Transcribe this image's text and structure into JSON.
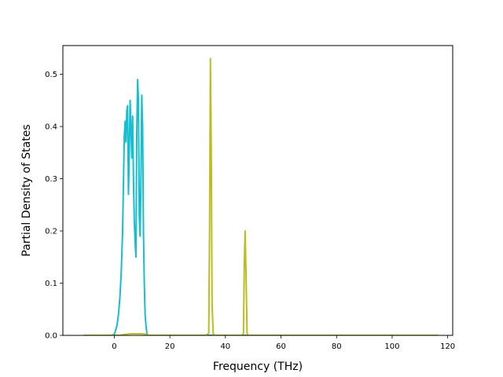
{
  "chart_data": {
    "type": "line",
    "xlabel": "Frequency (THz)",
    "ylabel": "Partial Density of States",
    "xlim": [
      -18.5,
      121.8
    ],
    "ylim": [
      0,
      0.555
    ],
    "xticks": [
      0,
      20,
      40,
      60,
      80,
      100,
      120
    ],
    "yticks": [
      0.0,
      0.1,
      0.2,
      0.3,
      0.4,
      0.5
    ],
    "xtick_labels": [
      "0",
      "20",
      "40",
      "60",
      "80",
      "100",
      "120"
    ],
    "ytick_labels": [
      "0.0",
      "0.1",
      "0.2",
      "0.3",
      "0.4",
      "0.5"
    ],
    "grid": false,
    "legend": "none",
    "series": [
      {
        "color": "#17becf",
        "x": [
          -11,
          -1,
          0,
          0.5,
          1,
          1.5,
          2,
          2.5,
          3,
          3.3,
          3.6,
          3.9,
          4.2,
          4.5,
          4.8,
          5.1,
          5.4,
          5.7,
          6,
          6.3,
          6.6,
          6.9,
          7.2,
          7.5,
          7.8,
          8.1,
          8.4,
          8.7,
          9,
          9.3,
          9.6,
          9.9,
          10.2,
          10.5,
          10.8,
          11.1,
          11.4,
          11.7,
          12,
          12.5,
          13,
          116.5
        ],
        "y": [
          0,
          0,
          0.002,
          0.01,
          0.02,
          0.04,
          0.07,
          0.12,
          0.2,
          0.29,
          0.38,
          0.41,
          0.37,
          0.43,
          0.44,
          0.27,
          0.35,
          0.45,
          0.4,
          0.34,
          0.42,
          0.3,
          0.22,
          0.18,
          0.15,
          0.39,
          0.49,
          0.45,
          0.23,
          0.19,
          0.3,
          0.46,
          0.4,
          0.2,
          0.1,
          0.04,
          0.02,
          0.005,
          0,
          0,
          0,
          0
        ]
      },
      {
        "color": "#bcbd22",
        "x": [
          -11,
          2,
          4,
          6,
          8,
          10,
          11.5,
          12,
          33,
          34,
          34.3,
          34.6,
          34.9,
          35.2,
          35.6,
          36,
          46,
          46.5,
          46.8,
          47.1,
          47.4,
          47.8,
          48.2,
          116.5
        ],
        "y": [
          0,
          0,
          0.002,
          0.003,
          0.003,
          0.003,
          0.002,
          0,
          0,
          0.004,
          0.2,
          0.53,
          0.35,
          0.06,
          0.004,
          0,
          0,
          0.004,
          0.14,
          0.2,
          0.12,
          0.004,
          0,
          0
        ]
      }
    ]
  }
}
